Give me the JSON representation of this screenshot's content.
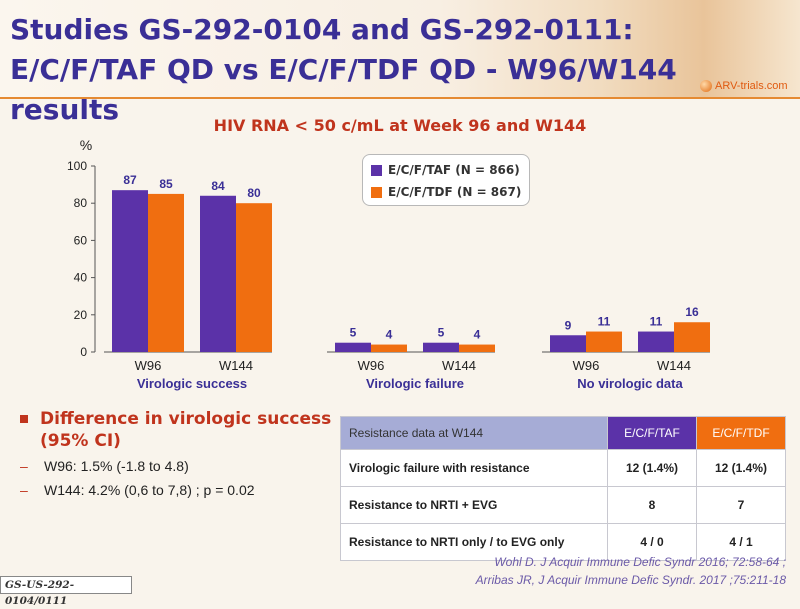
{
  "slide": {
    "title": "Studies GS-292-0104 and GS-292-0111: E/C/F/TAF QD vs E/C/F/TDF QD - W96/W144 results",
    "logo_text": "ARV-trials.com",
    "footer_tag": "GS-US-292-0104/0111"
  },
  "chart_data": {
    "type": "bar",
    "title": "HIV RNA < 50 c/mL at Week 96 and W144",
    "ylabel": "%",
    "ylim": [
      0,
      100
    ],
    "yticks": [
      0,
      20,
      40,
      60,
      80,
      100
    ],
    "groups": [
      {
        "label": "Virologic  success",
        "categories": [
          "W96",
          "W144"
        ]
      },
      {
        "label": "Virologic  failure",
        "categories": [
          "W96",
          "W144"
        ]
      },
      {
        "label": "No virologic data",
        "categories": [
          "W96",
          "W144"
        ]
      }
    ],
    "series": [
      {
        "name": "E/C/F/TAF (N = 866)",
        "color": "#5b32a8",
        "values": [
          87,
          84,
          5,
          5,
          9,
          11
        ]
      },
      {
        "name": "E/C/F/TDF (N = 867)",
        "color": "#f06e10",
        "values": [
          85,
          80,
          4,
          4,
          11,
          16
        ]
      }
    ],
    "value_label_color": "#3a2f96",
    "grid": false,
    "legend_position": "top-center"
  },
  "bullets": {
    "heading": "Difference in virologic success (95% CI)",
    "items": [
      "W96: 1.5% (-1.8 to 4.8)",
      "W144: 4.2% (0,6 to 7,8) ; p = 0.02"
    ]
  },
  "resistance_table": {
    "headers": [
      "Resistance data at W144",
      "E/C/F/TAF",
      "E/C/F/TDF"
    ],
    "rows": [
      [
        "Virologic failure with resistance",
        "12 (1.4%)",
        "12 (1.4%)"
      ],
      [
        "Resistance to NRTI + EVG",
        "8",
        "7"
      ],
      [
        "Resistance to NRTI only / to EVG only",
        "4 / 0",
        "4 / 1"
      ]
    ]
  },
  "citation": {
    "line1": "Wohl D. J Acquir Immune Defic Syndr 2016; 72:58-64 ;",
    "line2": "Arribas JR, J Acquir Immune Defic Syndr. 2017 ;75:211-18"
  }
}
